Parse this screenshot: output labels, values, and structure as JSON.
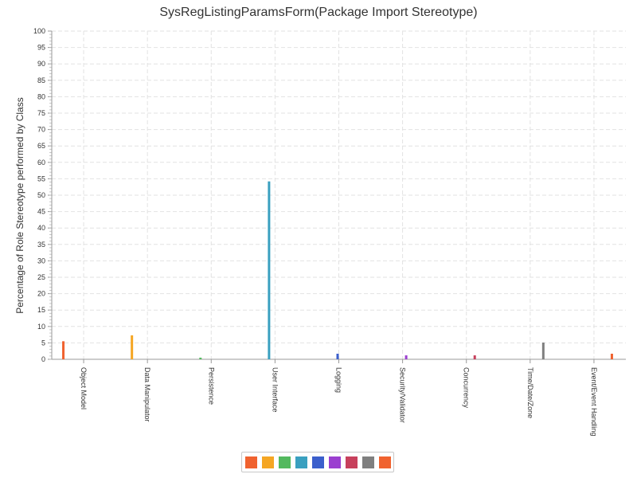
{
  "chart_data": {
    "type": "bar",
    "title": "SysRegListingParamsForm(Package Import Stereotype)",
    "xlabel": "",
    "ylabel": "Percentage of Role Stereotype performed by Class",
    "ylim": [
      0,
      100
    ],
    "ytick_step": 5,
    "grid": true,
    "legend_position": "bottom",
    "categories": [
      "Object Model",
      "Data Manipulator",
      "Persistence",
      "User Interface",
      "Logging",
      "Security/Validator",
      "Concurrency",
      "Time/Date/Zone",
      "Event/Event Handling"
    ],
    "series": [
      {
        "values": [
          5.5,
          0,
          0,
          0,
          0,
          0,
          0,
          0,
          0
        ]
      },
      {
        "values": [
          0,
          7.3,
          0,
          0,
          0,
          0,
          0,
          0,
          0
        ]
      },
      {
        "values": [
          0,
          0,
          0.5,
          0,
          0,
          0,
          0,
          0,
          0
        ]
      },
      {
        "values": [
          0,
          0,
          0,
          54.2,
          0,
          0,
          0,
          0,
          0
        ]
      },
      {
        "values": [
          0,
          0,
          0,
          0,
          1.7,
          0,
          0,
          0,
          0
        ]
      },
      {
        "values": [
          0,
          0,
          0,
          0,
          0,
          1.2,
          0,
          0,
          0
        ]
      },
      {
        "values": [
          0,
          0,
          0,
          0,
          0,
          0,
          1.2,
          0,
          0
        ]
      },
      {
        "values": [
          0,
          0,
          0,
          0,
          0,
          0,
          0,
          5.1,
          0
        ]
      },
      {
        "values": [
          0,
          0,
          0,
          0,
          0,
          0,
          0,
          0,
          1.7
        ]
      }
    ],
    "colors": [
      "#f0622f",
      "#f5a623",
      "#53b95e",
      "#3aa0c0",
      "#3b5fcc",
      "#9b3fd0",
      "#c7405c",
      "#7f7f7f",
      "#f0622f"
    ]
  }
}
